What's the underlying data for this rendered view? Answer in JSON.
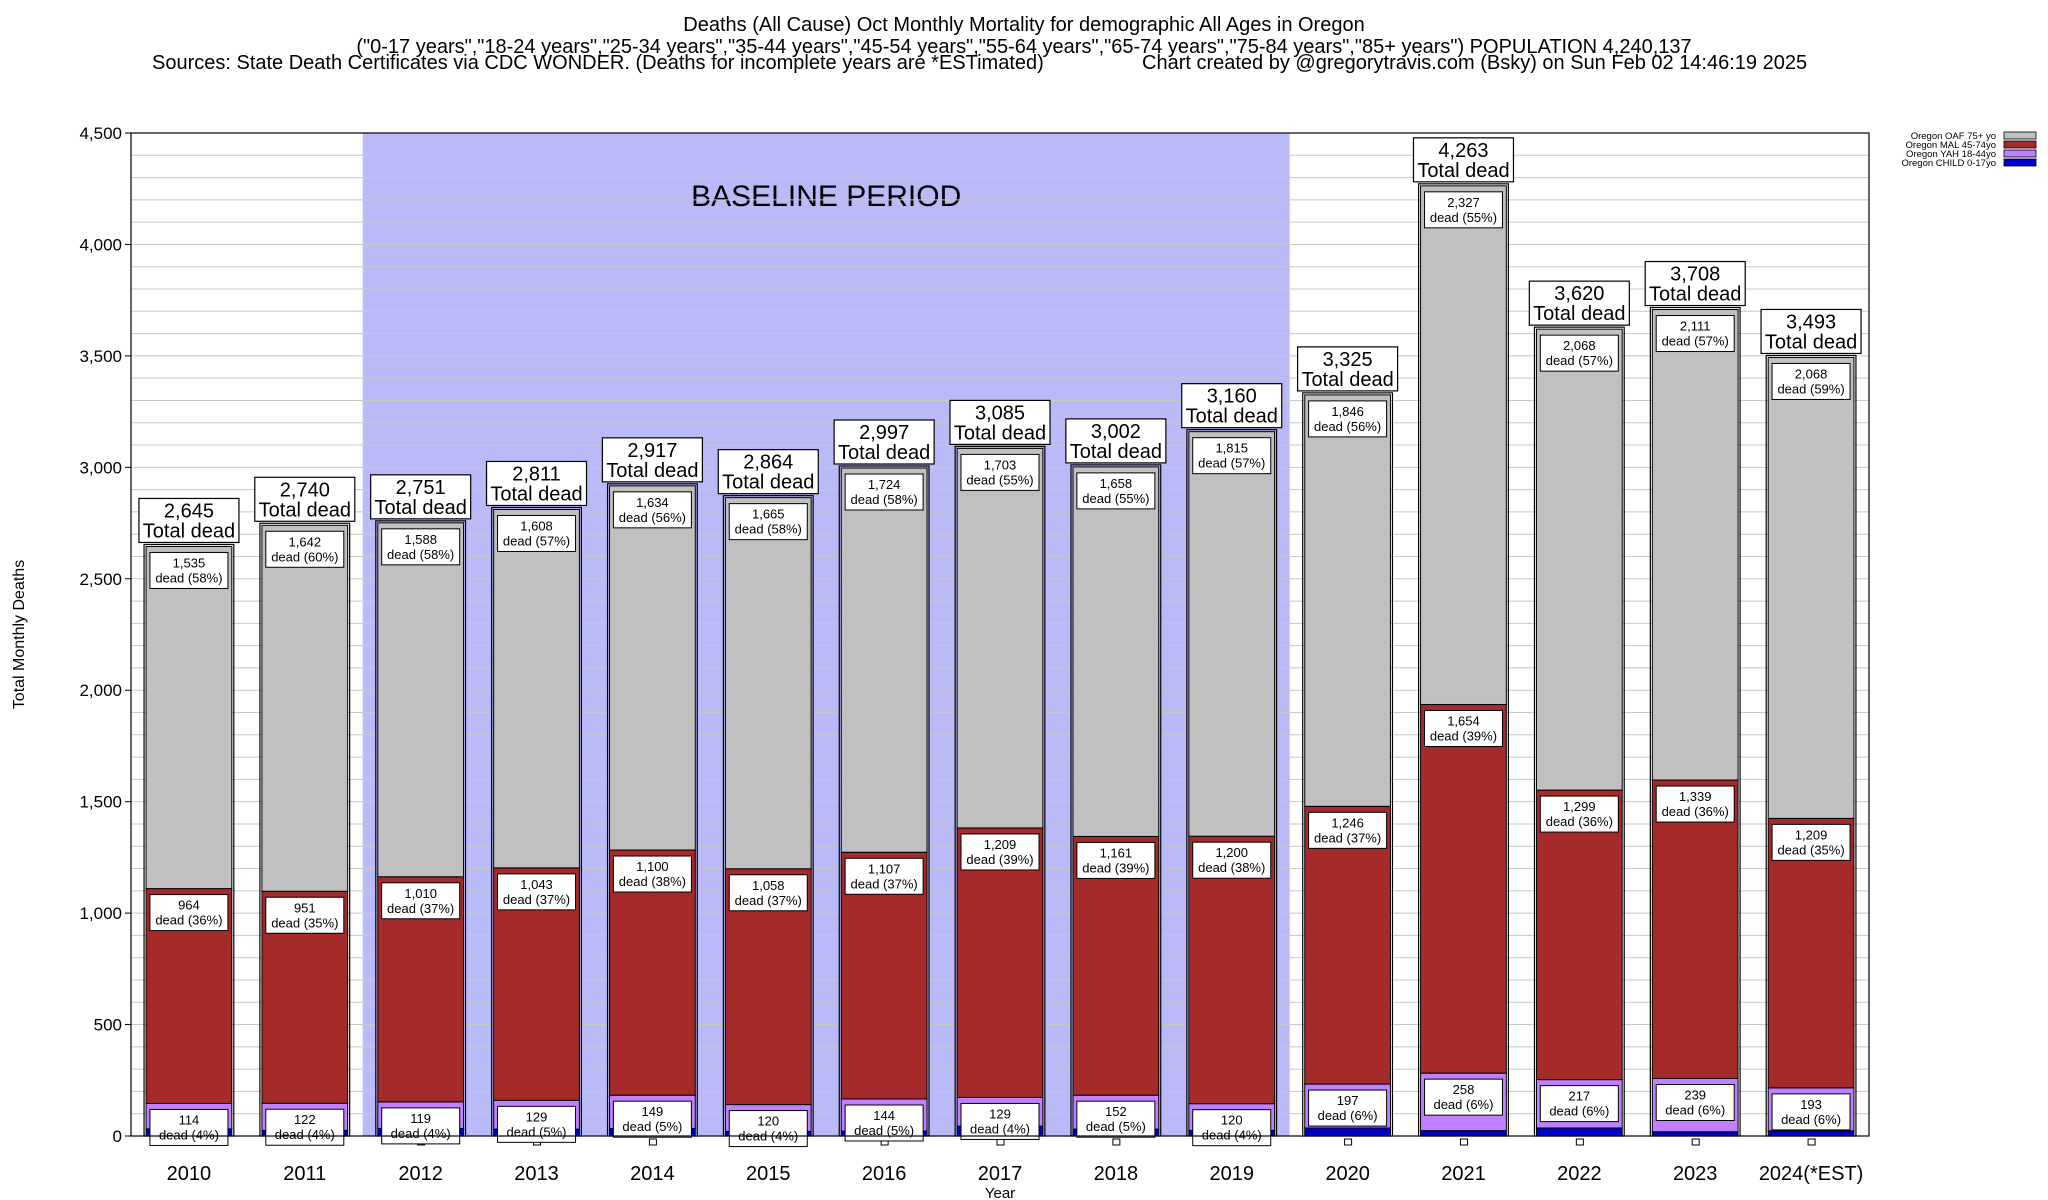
{
  "header": {
    "title": "Deaths (All Cause) Oct Monthly Mortality for demographic All Ages in Oregon",
    "subtitle": "(\"0-17 years\",\"18-24 years\",\"25-34 years\",\"35-44 years\",\"45-54 years\",\"55-64 years\",\"65-74 years\",\"75-84 years\",\"85+ years\") POPULATION 4,240,137",
    "sources": "Sources: State Death Certificates via CDC WONDER. (Deaths for incomplete years are *ESTimated)",
    "credit": "Chart created by @gregorytravis.com (Bsky) on Sun Feb 02 14:46:19 2025"
  },
  "colors": {
    "oaf": "#c0c0c0",
    "mal": "#a52a2a",
    "yah": "#c080ff",
    "child": "#0000cc",
    "baseline": "#babaf8",
    "grid": "#c8c8c8"
  },
  "chart_data": {
    "type": "bar",
    "stacked": true,
    "xlabel": "Year",
    "ylabel": "Total Monthly Deaths",
    "ylim": [
      0,
      4500
    ],
    "yticks": [
      0,
      500,
      1000,
      1500,
      2000,
      2500,
      3000,
      3500,
      4000,
      4500
    ],
    "ytick_labels": [
      "0",
      "500",
      "1,000",
      "1,500",
      "2,000",
      "2,500",
      "3,000",
      "3,500",
      "4,000",
      "4,500"
    ],
    "grid": true,
    "legend_position": "top-right",
    "categories": [
      "2010",
      "2011",
      "2012",
      "2013",
      "2014",
      "2015",
      "2016",
      "2017",
      "2018",
      "2019",
      "2020",
      "2021",
      "2022",
      "2023",
      "2024(*EST)"
    ],
    "baseline_period": {
      "label": "BASELINE PERIOD",
      "from": "2012",
      "to": "2019"
    },
    "series": [
      {
        "name": "Oregon CHILD 0-17yo",
        "color": "#0000cc",
        "values": [
          32,
          25,
          34,
          31,
          34,
          21,
          22,
          44,
          31,
          25,
          36,
          24,
          36,
          19,
          23
        ],
        "labels": [
          "",
          "",
          "",
          "",
          "",
          "",
          "",
          "",
          "",
          "",
          "",
          "",
          "",
          "",
          ""
        ]
      },
      {
        "name": "Oregon YAH 18-44yo",
        "color": "#c080ff",
        "values": [
          114,
          122,
          119,
          129,
          149,
          120,
          144,
          129,
          152,
          120,
          197,
          258,
          217,
          239,
          193
        ],
        "labels": [
          "114\ndead (4%)",
          "122\ndead (4%)",
          "119\ndead (4%)",
          "129\ndead (5%)",
          "149\ndead (5%)",
          "120\ndead (4%)",
          "144\ndead (5%)",
          "129\ndead (4%)",
          "152\ndead (5%)",
          "120\ndead (4%)",
          "197\ndead (6%)",
          "258\ndead (6%)",
          "217\ndead (6%)",
          "239\ndead (6%)",
          "193\ndead (6%)"
        ]
      },
      {
        "name": "Oregon MAL 45-74yo",
        "color": "#a52a2a",
        "values": [
          964,
          951,
          1010,
          1043,
          1100,
          1058,
          1107,
          1209,
          1161,
          1200,
          1246,
          1654,
          1299,
          1339,
          1209
        ],
        "labels": [
          "964\ndead (36%)",
          "951\ndead (35%)",
          "1,010\ndead (37%)",
          "1,043\ndead (37%)",
          "1,100\ndead (38%)",
          "1,058\ndead (37%)",
          "1,107\ndead (37%)",
          "1,209\ndead (39%)",
          "1,161\ndead (39%)",
          "1,200\ndead (38%)",
          "1,246\ndead (37%)",
          "1,654\ndead (39%)",
          "1,299\ndead (36%)",
          "1,339\ndead (36%)",
          "1,209\ndead (35%)"
        ]
      },
      {
        "name": "Oregon OAF 75+ yo",
        "color": "#c0c0c0",
        "values": [
          1535,
          1642,
          1588,
          1608,
          1634,
          1665,
          1724,
          1703,
          1658,
          1815,
          1846,
          2327,
          2068,
          2111,
          2068
        ],
        "labels": [
          "1,535\ndead (58%)",
          "1,642\ndead (60%)",
          "1,588\ndead (58%)",
          "1,608\ndead (57%)",
          "1,634\ndead (56%)",
          "1,665\ndead (58%)",
          "1,724\ndead (58%)",
          "1,703\ndead (55%)",
          "1,658\ndead (55%)",
          "1,815\ndead (57%)",
          "1,846\ndead (56%)",
          "2,327\ndead (55%)",
          "2,068\ndead (57%)",
          "2,111\ndead (57%)",
          "2,068\ndead (59%)"
        ]
      }
    ],
    "totals": [
      2645,
      2740,
      2751,
      2811,
      2917,
      2864,
      2997,
      3085,
      3002,
      3160,
      3325,
      4263,
      3620,
      3708,
      3493
    ],
    "total_labels": [
      "2,645\nTotal dead",
      "2,740\nTotal dead",
      "2,751\nTotal dead",
      "2,811\nTotal dead",
      "2,917\nTotal dead",
      "2,864\nTotal dead",
      "2,997\nTotal dead",
      "3,085\nTotal dead",
      "3,002\nTotal dead",
      "3,160\nTotal dead",
      "3,325\nTotal dead",
      "4,263\nTotal dead",
      "3,620\nTotal dead",
      "3,708\nTotal dead",
      "3,493\nTotal dead"
    ]
  }
}
